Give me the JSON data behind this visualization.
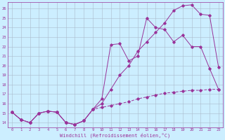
{
  "title": "",
  "xlabel": "Windchill (Refroidissement éolien,°C)",
  "background_color": "#cceeff",
  "line_color": "#993399",
  "grid_color": "#aaaaaa",
  "x_range": [
    -0.5,
    23.5
  ],
  "y_range": [
    13.5,
    26.7
  ],
  "yticks": [
    14,
    15,
    16,
    17,
    18,
    19,
    20,
    21,
    22,
    23,
    24,
    25,
    26
  ],
  "xticks": [
    0,
    1,
    2,
    3,
    4,
    5,
    6,
    7,
    8,
    9,
    10,
    11,
    12,
    13,
    14,
    15,
    16,
    17,
    18,
    19,
    20,
    21,
    22,
    23
  ],
  "series1_x": [
    0,
    1,
    2,
    3,
    4,
    5,
    6,
    7,
    8,
    9,
    10,
    11,
    12,
    13,
    14,
    15,
    16,
    17,
    18,
    19,
    20,
    21,
    22,
    23
  ],
  "series1_y": [
    15.1,
    14.3,
    14.0,
    15.0,
    15.2,
    15.1,
    14.0,
    13.8,
    14.2,
    15.4,
    16.5,
    22.2,
    22.3,
    20.5,
    21.0,
    25.0,
    24.0,
    23.8,
    22.5,
    23.2,
    22.0,
    22.0,
    19.7,
    17.5
  ],
  "series2_x": [
    0,
    1,
    2,
    3,
    4,
    5,
    6,
    7,
    8,
    9,
    10,
    11,
    12,
    13,
    14,
    15,
    16,
    17,
    18,
    19,
    20,
    21,
    22,
    23
  ],
  "series2_y": [
    15.1,
    14.3,
    14.0,
    15.0,
    15.2,
    15.1,
    14.0,
    13.8,
    14.2,
    15.4,
    16.0,
    17.5,
    19.0,
    20.0,
    21.5,
    22.5,
    23.5,
    24.5,
    25.8,
    26.3,
    26.4,
    25.4,
    25.3,
    19.8
  ],
  "series3_x": [
    0,
    1,
    2,
    3,
    4,
    5,
    6,
    7,
    8,
    9,
    10,
    11,
    12,
    13,
    14,
    15,
    16,
    17,
    18,
    19,
    20,
    21,
    22,
    23
  ],
  "series3_y": [
    15.1,
    14.3,
    14.0,
    15.0,
    15.2,
    15.1,
    14.0,
    13.8,
    14.2,
    15.4,
    15.6,
    15.8,
    16.0,
    16.2,
    16.5,
    16.7,
    16.9,
    17.1,
    17.2,
    17.3,
    17.4,
    17.4,
    17.5,
    17.5
  ]
}
